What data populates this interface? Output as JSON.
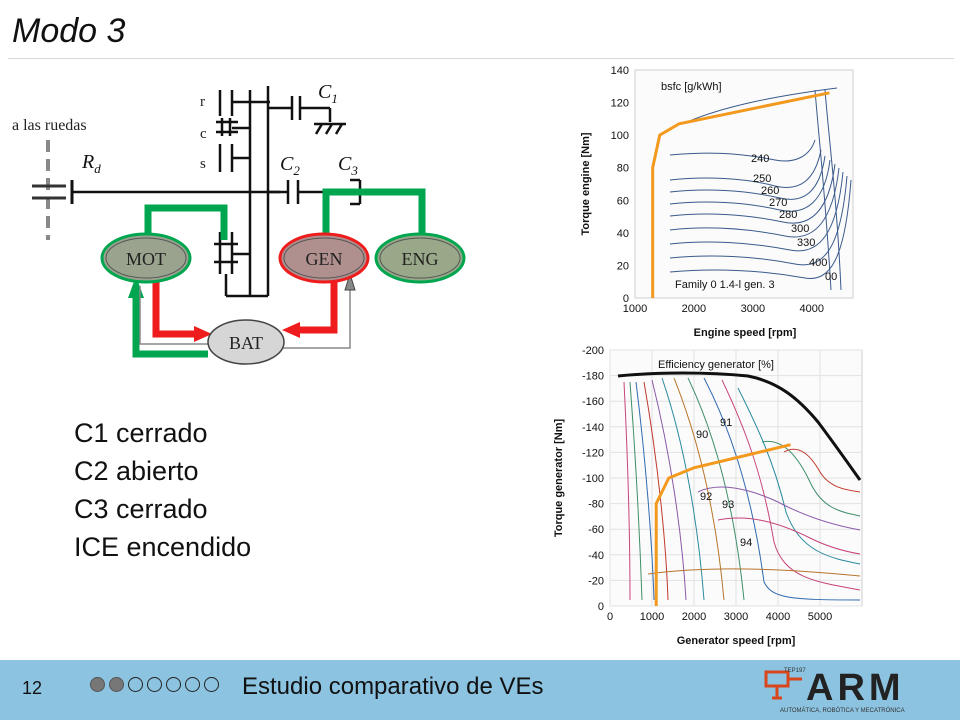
{
  "slide": {
    "title": "Modo 3",
    "page_number": "12",
    "footer_text": "Estudio comparativo de VEs",
    "progress": {
      "total": 7,
      "current": 2
    }
  },
  "diagram": {
    "labels": {
      "wheels": "a las ruedas",
      "rd": "R",
      "rd_sub": "d",
      "r": "r",
      "c": "c",
      "s": "s",
      "c1": "C",
      "c1_sub": "1",
      "c2": "C",
      "c2_sub": "2",
      "c3": "C",
      "c3_sub": "3",
      "mot": "MOT",
      "gen": "GEN",
      "eng": "ENG",
      "bat": "BAT"
    },
    "colors": {
      "green": "#00a64f",
      "red": "#ee1c1c",
      "mot_fill": "#9aa38e",
      "gen_fill": "#b08f8f",
      "eng_fill": "#98a888",
      "bat_fill": "#d6d6d6"
    }
  },
  "status_lines": [
    "C1 cerrado",
    "C2 abierto",
    "C3 cerrado",
    "ICE encendido"
  ],
  "chart_data": [
    {
      "type": "contour",
      "title": "bsfc [g/kWh]",
      "annotation": "Family 0 1.4-l gen. 3",
      "xlabel": "Engine speed [rpm]",
      "ylabel": "Torque engine [Nm]",
      "xticks": [
        1000,
        2000,
        3000,
        4000
      ],
      "yticks": [
        0,
        20,
        40,
        60,
        80,
        100,
        120,
        140
      ],
      "xlim": [
        1000,
        4700
      ],
      "ylim": [
        0,
        140
      ],
      "contour_labels": [
        "240",
        "250",
        "260",
        "270",
        "280",
        "300",
        "330",
        "400",
        "00"
      ],
      "operating_line": {
        "color": "#f39a1e",
        "x": [
          1300,
          1300,
          1420,
          1750,
          4300
        ],
        "y": [
          0,
          80,
          100,
          107,
          126
        ]
      }
    },
    {
      "type": "contour",
      "title": "Efficiency generator [%]",
      "xlabel": "Generator speed [rpm]",
      "ylabel": "Torque generator [Nm]",
      "xticks": [
        0,
        1000,
        2000,
        3000,
        4000,
        5000
      ],
      "yticks": [
        0,
        -20,
        -40,
        -60,
        -80,
        -100,
        -120,
        -140,
        -160,
        -180,
        -200
      ],
      "xlim": [
        0,
        6000
      ],
      "ylim": [
        0,
        -200
      ],
      "contour_labels": [
        "90",
        "91",
        "92",
        "93",
        "94"
      ],
      "operating_line": {
        "color": "#f39a1e",
        "x": [
          1100,
          1100,
          1400,
          2000,
          4300
        ],
        "y": [
          0,
          -80,
          -100,
          -108,
          -126
        ]
      }
    }
  ],
  "logo": {
    "text": "ARM",
    "subtitle": "AUTOMÁTICA, ROBÓTICA Y MECATRÓNICA",
    "tag": "TEP197"
  }
}
